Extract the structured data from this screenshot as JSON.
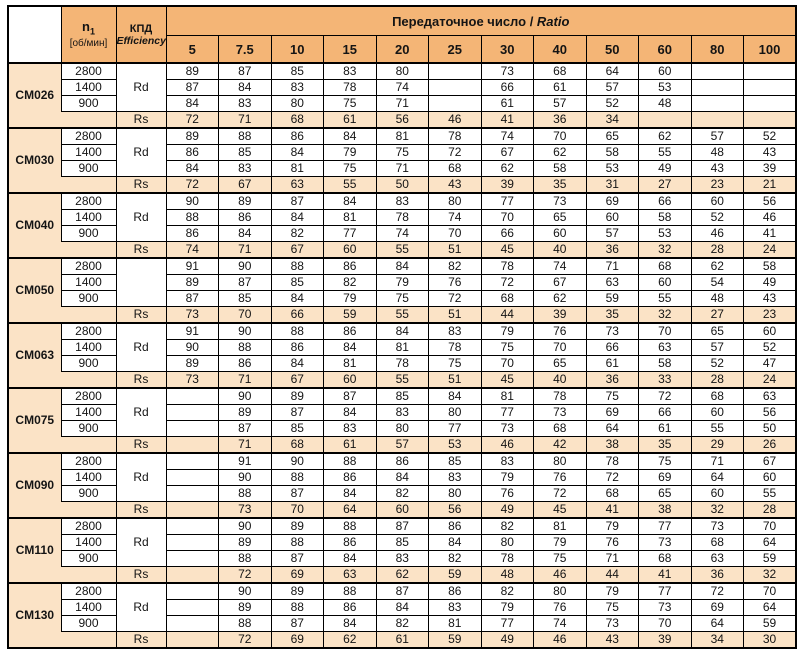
{
  "header": {
    "n1_base": "n",
    "n1_sub": "1",
    "n1_unit": "[об/мин]",
    "kpd_ru": "КПД",
    "kpd_en": "Efficiency",
    "ratio_title": "Передаточное число / ",
    "ratio_title_italic": "Ratio",
    "ratio_columns": [
      "5",
      "7.5",
      "10",
      "15",
      "20",
      "25",
      "30",
      "40",
      "50",
      "60",
      "80",
      "100"
    ]
  },
  "colors": {
    "header_orange": "#F4B576",
    "row_peach": "#FBE3C6",
    "border": "#000000"
  },
  "models": [
    {
      "name": "CM026",
      "rd": "Rd",
      "rows": [
        {
          "speed": "2800",
          "values": [
            "89",
            "87",
            "85",
            "83",
            "80",
            "",
            "73",
            "68",
            "64",
            "60",
            "",
            ""
          ]
        },
        {
          "speed": "1400",
          "values": [
            "87",
            "84",
            "83",
            "78",
            "74",
            "",
            "66",
            "61",
            "57",
            "53",
            "",
            ""
          ]
        },
        {
          "speed": "900",
          "values": [
            "84",
            "83",
            "80",
            "75",
            "71",
            "",
            "61",
            "57",
            "52",
            "48",
            "",
            ""
          ]
        }
      ],
      "rs_label": "Rs",
      "rs": [
        "72",
        "71",
        "68",
        "61",
        "56",
        "46",
        "41",
        "36",
        "34",
        "",
        "",
        ""
      ]
    },
    {
      "name": "CM030",
      "rd": "Rd",
      "rows": [
        {
          "speed": "2800",
          "values": [
            "89",
            "88",
            "86",
            "84",
            "81",
            "78",
            "74",
            "70",
            "65",
            "62",
            "57",
            "52"
          ]
        },
        {
          "speed": "1400",
          "values": [
            "86",
            "85",
            "84",
            "79",
            "75",
            "72",
            "67",
            "62",
            "58",
            "55",
            "48",
            "43"
          ]
        },
        {
          "speed": "900",
          "values": [
            "84",
            "83",
            "81",
            "75",
            "71",
            "68",
            "62",
            "58",
            "53",
            "49",
            "43",
            "39"
          ]
        }
      ],
      "rs_label": "Rs",
      "rs": [
        "72",
        "67",
        "63",
        "55",
        "50",
        "43",
        "39",
        "35",
        "31",
        "27",
        "23",
        "21"
      ]
    },
    {
      "name": "CM040",
      "rd": "Rd",
      "rows": [
        {
          "speed": "2800",
          "values": [
            "90",
            "89",
            "87",
            "84",
            "83",
            "80",
            "77",
            "73",
            "69",
            "66",
            "60",
            "56"
          ]
        },
        {
          "speed": "1400",
          "values": [
            "88",
            "86",
            "84",
            "81",
            "78",
            "74",
            "70",
            "65",
            "60",
            "58",
            "52",
            "46"
          ]
        },
        {
          "speed": "900",
          "values": [
            "86",
            "84",
            "82",
            "77",
            "74",
            "70",
            "66",
            "60",
            "57",
            "53",
            "46",
            "41"
          ]
        }
      ],
      "rs_label": "Rs",
      "rs": [
        "74",
        "71",
        "67",
        "60",
        "55",
        "51",
        "45",
        "40",
        "36",
        "32",
        "28",
        "24"
      ]
    },
    {
      "name": "CM050",
      "rd": "",
      "rows": [
        {
          "speed": "2800",
          "values": [
            "91",
            "90",
            "88",
            "86",
            "84",
            "82",
            "78",
            "74",
            "71",
            "68",
            "62",
            "58"
          ]
        },
        {
          "speed": "1400",
          "values": [
            "89",
            "87",
            "85",
            "82",
            "79",
            "76",
            "72",
            "67",
            "63",
            "60",
            "54",
            "49"
          ]
        },
        {
          "speed": "900",
          "values": [
            "87",
            "85",
            "84",
            "79",
            "75",
            "72",
            "68",
            "62",
            "59",
            "55",
            "48",
            "43"
          ]
        }
      ],
      "rs_label": "Rs",
      "rs": [
        "73",
        "70",
        "66",
        "59",
        "55",
        "51",
        "44",
        "39",
        "35",
        "32",
        "27",
        "23"
      ]
    },
    {
      "name": "CM063",
      "rd": "Rd",
      "rows": [
        {
          "speed": "2800",
          "values": [
            "91",
            "90",
            "88",
            "86",
            "84",
            "83",
            "79",
            "76",
            "73",
            "70",
            "65",
            "60"
          ]
        },
        {
          "speed": "1400",
          "values": [
            "90",
            "88",
            "86",
            "84",
            "81",
            "78",
            "75",
            "70",
            "66",
            "63",
            "57",
            "52"
          ]
        },
        {
          "speed": "900",
          "values": [
            "89",
            "86",
            "84",
            "81",
            "78",
            "75",
            "70",
            "65",
            "61",
            "58",
            "52",
            "47"
          ]
        }
      ],
      "rs_label": "Rs",
      "rs": [
        "73",
        "71",
        "67",
        "60",
        "55",
        "51",
        "45",
        "40",
        "36",
        "33",
        "28",
        "24"
      ]
    },
    {
      "name": "CM075",
      "rd": "Rd",
      "rows": [
        {
          "speed": "2800",
          "values": [
            "",
            "90",
            "89",
            "87",
            "85",
            "84",
            "81",
            "78",
            "75",
            "72",
            "68",
            "63"
          ]
        },
        {
          "speed": "1400",
          "values": [
            "",
            "89",
            "87",
            "84",
            "83",
            "80",
            "77",
            "73",
            "69",
            "66",
            "60",
            "56"
          ]
        },
        {
          "speed": "900",
          "values": [
            "",
            "87",
            "85",
            "83",
            "80",
            "77",
            "73",
            "68",
            "64",
            "61",
            "55",
            "50"
          ]
        }
      ],
      "rs_label": "Rs",
      "rs": [
        "",
        "71",
        "68",
        "61",
        "57",
        "53",
        "46",
        "42",
        "38",
        "35",
        "29",
        "26"
      ]
    },
    {
      "name": "CM090",
      "rd": "Rd",
      "rows": [
        {
          "speed": "2800",
          "values": [
            "",
            "91",
            "90",
            "88",
            "86",
            "85",
            "83",
            "80",
            "78",
            "75",
            "71",
            "67"
          ]
        },
        {
          "speed": "1400",
          "values": [
            "",
            "90",
            "88",
            "86",
            "84",
            "83",
            "79",
            "76",
            "72",
            "69",
            "64",
            "60"
          ]
        },
        {
          "speed": "900",
          "values": [
            "",
            "88",
            "87",
            "84",
            "82",
            "80",
            "76",
            "72",
            "68",
            "65",
            "60",
            "55"
          ]
        }
      ],
      "rs_label": "Rs",
      "rs": [
        "",
        "73",
        "70",
        "64",
        "60",
        "56",
        "49",
        "45",
        "41",
        "38",
        "32",
        "28"
      ]
    },
    {
      "name": "CM110",
      "rd": "Rd",
      "rows": [
        {
          "speed": "2800",
          "values": [
            "",
            "90",
            "89",
            "88",
            "87",
            "86",
            "82",
            "81",
            "79",
            "77",
            "73",
            "70"
          ]
        },
        {
          "speed": "1400",
          "values": [
            "",
            "89",
            "88",
            "86",
            "85",
            "84",
            "80",
            "79",
            "76",
            "73",
            "68",
            "64"
          ]
        },
        {
          "speed": "900",
          "values": [
            "",
            "88",
            "87",
            "84",
            "83",
            "82",
            "78",
            "75",
            "71",
            "68",
            "63",
            "59"
          ]
        }
      ],
      "rs_label": "Rs",
      "rs": [
        "",
        "72",
        "69",
        "63",
        "62",
        "59",
        "48",
        "46",
        "44",
        "41",
        "36",
        "32"
      ]
    },
    {
      "name": "CM130",
      "rd": "Rd",
      "rows": [
        {
          "speed": "2800",
          "values": [
            "",
            "90",
            "89",
            "88",
            "87",
            "86",
            "82",
            "80",
            "79",
            "77",
            "72",
            "70"
          ]
        },
        {
          "speed": "1400",
          "values": [
            "",
            "89",
            "88",
            "86",
            "84",
            "83",
            "79",
            "76",
            "75",
            "73",
            "69",
            "64"
          ]
        },
        {
          "speed": "900",
          "values": [
            "",
            "88",
            "87",
            "84",
            "82",
            "81",
            "77",
            "74",
            "73",
            "70",
            "64",
            "59"
          ]
        }
      ],
      "rs_label": "Rs",
      "rs": [
        "",
        "72",
        "69",
        "62",
        "61",
        "59",
        "49",
        "46",
        "43",
        "39",
        "34",
        "30"
      ]
    }
  ]
}
